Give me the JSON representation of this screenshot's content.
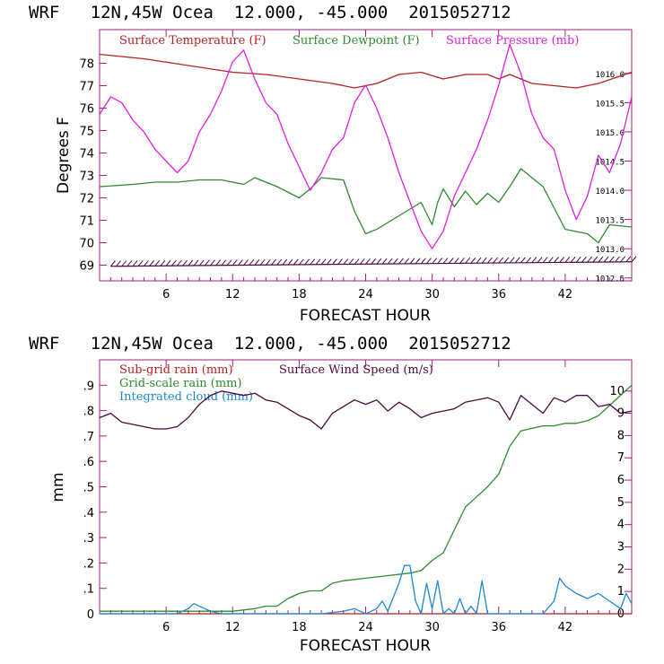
{
  "colors": {
    "temperature": "#b22222",
    "dewpoint": "#2e8b2e",
    "pressure": "#e020e0",
    "axes_right": "#a0207a",
    "wind": "#4b0a3c",
    "grid_rain": "#2e8b2e",
    "cloud": "#1e88d0",
    "subgrid": "#b22222"
  },
  "chart_data": [
    {
      "type": "line",
      "title": "WRF   12N,45W Ocea  12.000, -45.000  2015052712",
      "xlabel": "FORECAST HOUR",
      "ylabel": "Degrees F",
      "xlim": [
        0,
        48
      ],
      "ylim": [
        68.3,
        79.5
      ],
      "y2lim": [
        1012.45,
        1016.75
      ],
      "xticks": [
        6,
        12,
        18,
        24,
        30,
        36,
        42
      ],
      "yticks": [
        69,
        70,
        71,
        72,
        73,
        74,
        75,
        76,
        77,
        78
      ],
      "ytick_labels": [
        "69",
        "70",
        "71",
        "72",
        "73",
        "74",
        "75",
        "76",
        "77",
        "78"
      ],
      "y2ticks": [
        1012.5,
        1013.0,
        1013.5,
        1014.0,
        1014.5,
        1015.0,
        1015.5,
        1016.0
      ],
      "y2tick_labels": [
        "1012.5",
        "1013.0",
        "1013.5",
        "1014.0",
        "1014.5",
        "1015.0",
        "1015.5",
        "1016.0"
      ],
      "legend": [
        "Surface Temperature (F)",
        "Surface Dewpoint (F)",
        "Surface Pressure (mb)"
      ],
      "series": [
        {
          "name": "Surface Temperature (F)",
          "axis": "left",
          "color_key": "temperature",
          "x": [
            0,
            4,
            8,
            12,
            15,
            18,
            21,
            23,
            25,
            27,
            29,
            31,
            33,
            35,
            36,
            37,
            39,
            41,
            43,
            45,
            48
          ],
          "values": [
            78.4,
            78.2,
            77.9,
            77.6,
            77.5,
            77.3,
            77.1,
            76.9,
            77.1,
            77.5,
            77.6,
            77.3,
            77.5,
            77.5,
            77.3,
            77.5,
            77.1,
            77.0,
            76.9,
            77.1,
            77.6
          ]
        },
        {
          "name": "Surface Dewpoint (F)",
          "axis": "left",
          "color_key": "dewpoint",
          "x": [
            0,
            3,
            5,
            7,
            9,
            11,
            13,
            14,
            16,
            18,
            19,
            20,
            22,
            23,
            24,
            25,
            27,
            29,
            30,
            30.5,
            31,
            32,
            33,
            34,
            35,
            36,
            37,
            38,
            40,
            42,
            44,
            45,
            46,
            48
          ],
          "values": [
            72.5,
            72.6,
            72.7,
            72.7,
            72.8,
            72.8,
            72.6,
            72.9,
            72.5,
            72.0,
            72.4,
            72.9,
            72.8,
            71.4,
            70.4,
            70.6,
            71.2,
            71.8,
            70.8,
            71.8,
            72.4,
            71.6,
            72.3,
            71.7,
            72.2,
            71.8,
            72.5,
            73.3,
            72.5,
            70.6,
            70.4,
            70.0,
            70.8,
            70.7
          ]
        },
        {
          "name": "Surface Pressure (mb)",
          "axis": "right",
          "color_key": "pressure",
          "x": [
            0,
            1,
            2,
            3,
            4,
            5,
            6,
            7,
            8,
            9,
            10,
            11,
            12,
            13,
            14,
            15,
            16,
            17,
            18,
            19,
            20,
            21,
            22,
            23,
            24,
            25,
            26,
            27,
            28,
            29,
            30,
            31,
            32,
            33,
            34,
            35,
            36,
            37,
            38,
            39,
            40,
            41,
            42,
            43,
            44,
            45,
            46,
            47,
            48
          ],
          "values": [
            1015.3,
            1015.6,
            1015.5,
            1015.2,
            1015.0,
            1014.7,
            1014.5,
            1014.3,
            1014.5,
            1015.0,
            1015.3,
            1015.7,
            1016.2,
            1016.4,
            1015.9,
            1015.5,
            1015.3,
            1014.8,
            1014.4,
            1014.0,
            1014.3,
            1014.7,
            1014.9,
            1015.5,
            1015.8,
            1015.4,
            1014.9,
            1014.3,
            1013.8,
            1013.3,
            1013.0,
            1013.3,
            1013.9,
            1014.3,
            1014.7,
            1015.2,
            1015.8,
            1016.5,
            1016.0,
            1015.3,
            1014.9,
            1014.7,
            1014.0,
            1013.5,
            1013.9,
            1014.6,
            1014.3,
            1014.8,
            1015.6
          ]
        },
        {
          "name": "Surface Wind barbs",
          "axis": "left",
          "color_key": "wind",
          "x": [
            1,
            48
          ],
          "values": [
            68.95,
            69.15
          ]
        }
      ]
    },
    {
      "type": "line",
      "title": "WRF   12N,45W Ocea  12.000, -45.000  2015052712",
      "xlabel": "FORECAST HOUR",
      "ylabel": "mm",
      "xlim": [
        0,
        48
      ],
      "ylim": [
        0,
        1.0
      ],
      "y2lim": [
        0,
        11.4
      ],
      "xticks": [
        6,
        12,
        18,
        24,
        30,
        36,
        42
      ],
      "yticks": [
        0,
        0.1,
        0.2,
        0.3,
        0.4,
        0.5,
        0.6,
        0.7,
        0.8,
        0.9
      ],
      "ytick_labels": [
        "0",
        ".1",
        ".2",
        ".3",
        ".4",
        ".5",
        ".6",
        ".7",
        ".8",
        ".9"
      ],
      "y2ticks": [
        0,
        1,
        2,
        3,
        4,
        5,
        6,
        7,
        8,
        9,
        10
      ],
      "y2tick_labels": [
        "0",
        "1",
        "2",
        "3",
        "4",
        "5",
        "6",
        "7",
        "8",
        "9",
        "10"
      ],
      "legend": [
        "Sub-grid rain (mm)",
        "Grid-scale rain (mm)",
        "Integrated cloud (mm)",
        "Surface Wind Speed (m/s)"
      ],
      "series": [
        {
          "name": "Sub-grid rain (mm)",
          "axis": "left",
          "color_key": "subgrid",
          "x": [
            0,
            48
          ],
          "values": [
            0,
            0
          ]
        },
        {
          "name": "Grid-scale rain (mm)",
          "axis": "left",
          "color_key": "grid_rain",
          "x": [
            0,
            12,
            14,
            15,
            16,
            17,
            18,
            19,
            20,
            21,
            22,
            24,
            26,
            28,
            29,
            30,
            31,
            32,
            33,
            34,
            35,
            36,
            37,
            38,
            39,
            40,
            41,
            42,
            43,
            44,
            45,
            46,
            47,
            48
          ],
          "values": [
            0.01,
            0.01,
            0.02,
            0.03,
            0.03,
            0.06,
            0.08,
            0.09,
            0.09,
            0.12,
            0.13,
            0.14,
            0.15,
            0.16,
            0.17,
            0.21,
            0.24,
            0.33,
            0.42,
            0.46,
            0.5,
            0.55,
            0.66,
            0.72,
            0.73,
            0.74,
            0.74,
            0.75,
            0.75,
            0.76,
            0.78,
            0.82,
            0.86,
            0.9
          ]
        },
        {
          "name": "Integrated cloud (mm)",
          "axis": "left",
          "color_key": "cloud",
          "x": [
            0,
            7,
            8,
            8.5,
            9,
            10,
            11,
            20,
            22,
            23,
            24,
            25,
            25.5,
            26,
            27,
            27.5,
            28,
            28.5,
            29,
            29.5,
            30,
            30.5,
            31,
            31.5,
            32,
            32.5,
            33,
            33.5,
            34,
            34.5,
            35,
            36,
            40,
            41,
            41.5,
            42,
            43,
            44,
            45,
            46,
            47,
            47.5,
            48
          ],
          "values": [
            0.0,
            0.0,
            0.02,
            0.04,
            0.03,
            0.01,
            0.0,
            0.0,
            0.01,
            0.02,
            0.0,
            0.02,
            0.05,
            0.01,
            0.12,
            0.19,
            0.19,
            0.05,
            0.0,
            0.12,
            0.02,
            0.13,
            0.0,
            0.02,
            0.0,
            0.06,
            0.0,
            0.03,
            0.0,
            0.13,
            0.0,
            0.0,
            0.0,
            0.05,
            0.14,
            0.11,
            0.08,
            0.06,
            0.08,
            0.05,
            0.02,
            0.08,
            0.04
          ]
        },
        {
          "name": "Surface Wind Speed (m/s)",
          "axis": "right",
          "color_key": "wind",
          "x": [
            0,
            1,
            2,
            3,
            4,
            5,
            6,
            7,
            8,
            9,
            10,
            11,
            12,
            13,
            14,
            15,
            16,
            17,
            18,
            19,
            20,
            21,
            22,
            23,
            24,
            25,
            26,
            27,
            28,
            29,
            30,
            31,
            32,
            33,
            34,
            35,
            36,
            37,
            38,
            39,
            40,
            41,
            42,
            43,
            44,
            45,
            46,
            47,
            48
          ],
          "values": [
            8.8,
            9.0,
            8.6,
            8.5,
            8.4,
            8.3,
            8.3,
            8.4,
            8.8,
            9.4,
            9.8,
            10.0,
            9.9,
            9.8,
            9.9,
            9.6,
            9.5,
            9.2,
            8.9,
            8.7,
            8.3,
            9.0,
            9.3,
            9.6,
            9.4,
            9.6,
            9.1,
            9.5,
            9.2,
            8.8,
            9.0,
            9.1,
            9.2,
            9.5,
            9.6,
            9.7,
            9.5,
            8.7,
            9.8,
            9.4,
            9.0,
            9.7,
            9.5,
            9.8,
            9.8,
            9.3,
            9.4,
            9.0,
            9.1
          ]
        }
      ]
    }
  ]
}
